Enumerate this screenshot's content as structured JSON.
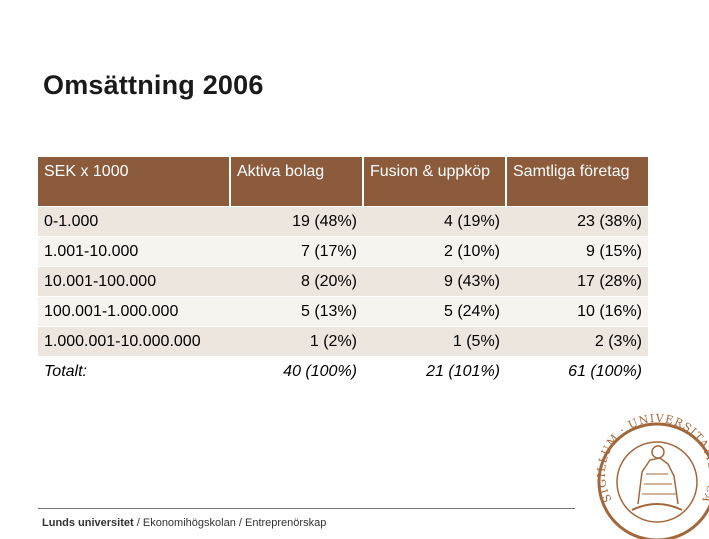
{
  "title": "Omsättning 2006",
  "table": {
    "headers": [
      "SEK x 1000",
      "Aktiva bolag",
      "Fusion & uppköp",
      "Samtliga företag"
    ],
    "rows": [
      [
        "0-1.000",
        "19   (48%)",
        "4   (19%)",
        "23   (38%)"
      ],
      [
        "1.001-10.000",
        "7   (17%)",
        "2   (10%)",
        "9   (15%)"
      ],
      [
        "10.001-100.000",
        "8   (20%)",
        "9   (43%)",
        "17   (28%)"
      ],
      [
        "100.001-1.000.000",
        "5   (13%)",
        "5   (24%)",
        "10   (16%)"
      ],
      [
        "1.000.001-10.000.000",
        "1      (2%)",
        "1      (5%)",
        "2      (3%)"
      ]
    ],
    "total": [
      "Totalt:",
      "40 (100%)",
      "21 (101%)",
      "61 (100%)"
    ]
  },
  "footer": {
    "university": "Lunds universitet",
    "separator": " / ",
    "school": "Ekonomihögskolan",
    "department": "Entreprenörskap"
  },
  "seal": {
    "alt": "Lund University seal",
    "text": "SIGILLUM · UNIVERSITATIS · CAROLINAE · LUNDENSIS"
  },
  "colors": {
    "header_bg": "#8b5b3c",
    "row_odd": "#ede6df",
    "row_even": "#f7f3ef",
    "seal": "#a2683c"
  }
}
